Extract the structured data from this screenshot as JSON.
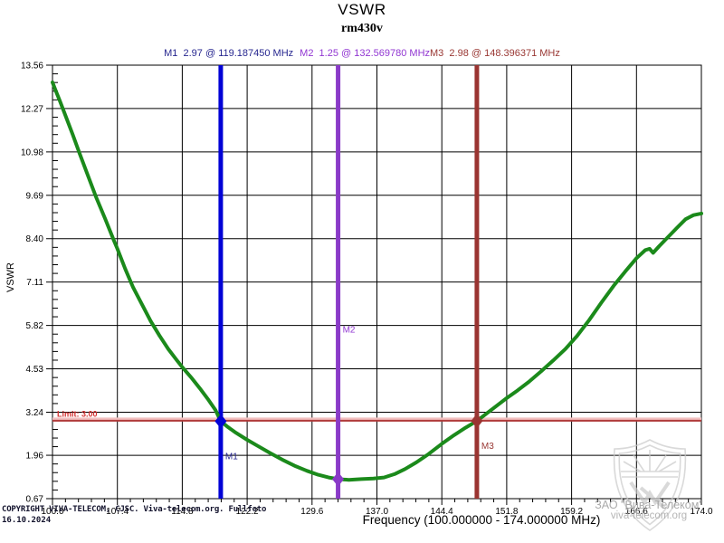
{
  "header": {
    "title": "VSWR",
    "subtitle": "rm430v"
  },
  "markers_readout": [
    {
      "id": "M1",
      "text": "M1  2.97 @ 119.187450 MHz",
      "color": "#26268f"
    },
    {
      "id": "M2",
      "text": "M2  1.25 @ 132.569780 MHz",
      "color": "#9136d2"
    },
    {
      "id": "M3",
      "text": "M3  2.98 @ 148.396371 MHz",
      "color": "#993733"
    }
  ],
  "chart_data": {
    "type": "line",
    "title": "VSWR",
    "subtitle": "rm430v",
    "xlabel": "Frequency (100.000000 - 174.000000 MHz)",
    "ylabel": "VSWR",
    "xlim": [
      100.0,
      174.0
    ],
    "ylim": [
      0.67,
      13.56
    ],
    "x_tick_labels": [
      "100.0",
      "107.4",
      "114.8",
      "122.2",
      "129.6",
      "137.0",
      "144.4",
      "151.8",
      "159.2",
      "166.6",
      "174.0"
    ],
    "x_ticks": [
      100.0,
      107.4,
      114.8,
      122.2,
      129.6,
      137.0,
      144.4,
      151.8,
      159.2,
      166.6,
      174.0
    ],
    "y_tick_labels": [
      "13.56",
      "12.27",
      "10.98",
      "9.69",
      "8.40",
      "7.11",
      "5.82",
      "4.53",
      "3.24",
      "1.96",
      "0.67"
    ],
    "y_ticks": [
      13.56,
      12.27,
      10.98,
      9.69,
      8.4,
      7.11,
      5.82,
      4.53,
      3.24,
      1.96,
      0.67
    ],
    "grid": true,
    "minor_divisions": 5,
    "series": [
      {
        "name": "VSWR trace",
        "color": "#1b8a1b",
        "points": [
          [
            100.0,
            13.05
          ],
          [
            100.4,
            12.78
          ],
          [
            100.8,
            12.52
          ],
          [
            101.5,
            12.05
          ],
          [
            102.3,
            11.5
          ],
          [
            103.1,
            10.93
          ],
          [
            104.0,
            10.3
          ],
          [
            105.0,
            9.62
          ],
          [
            106.0,
            9.0
          ],
          [
            107.0,
            8.35
          ],
          [
            107.4,
            8.1
          ],
          [
            108.3,
            7.5
          ],
          [
            109.2,
            6.95
          ],
          [
            110.2,
            6.45
          ],
          [
            111.2,
            5.95
          ],
          [
            112.2,
            5.52
          ],
          [
            113.2,
            5.12
          ],
          [
            114.2,
            4.78
          ],
          [
            114.8,
            4.58
          ],
          [
            115.8,
            4.28
          ],
          [
            116.8,
            3.95
          ],
          [
            117.8,
            3.6
          ],
          [
            118.6,
            3.3
          ],
          [
            119.187,
            2.97
          ],
          [
            119.9,
            2.82
          ],
          [
            120.8,
            2.65
          ],
          [
            122.2,
            2.42
          ],
          [
            123.4,
            2.24
          ],
          [
            124.8,
            2.03
          ],
          [
            126.2,
            1.83
          ],
          [
            127.6,
            1.65
          ],
          [
            129.0,
            1.5
          ],
          [
            130.3,
            1.38
          ],
          [
            131.5,
            1.3
          ],
          [
            132.57,
            1.25
          ],
          [
            133.8,
            1.23
          ],
          [
            135.2,
            1.25
          ],
          [
            136.6,
            1.27
          ],
          [
            137.8,
            1.3
          ],
          [
            139.0,
            1.4
          ],
          [
            140.2,
            1.55
          ],
          [
            141.5,
            1.75
          ],
          [
            142.9,
            2.0
          ],
          [
            144.4,
            2.3
          ],
          [
            145.8,
            2.56
          ],
          [
            147.1,
            2.78
          ],
          [
            148.396,
            2.98
          ],
          [
            149.6,
            3.22
          ],
          [
            150.8,
            3.46
          ],
          [
            151.8,
            3.66
          ],
          [
            153.0,
            3.88
          ],
          [
            154.3,
            4.14
          ],
          [
            155.7,
            4.45
          ],
          [
            157.1,
            4.78
          ],
          [
            158.5,
            5.12
          ],
          [
            159.8,
            5.5
          ],
          [
            161.2,
            5.98
          ],
          [
            162.6,
            6.5
          ],
          [
            164.0,
            7.0
          ],
          [
            165.3,
            7.42
          ],
          [
            166.6,
            7.82
          ],
          [
            167.6,
            8.06
          ],
          [
            168.1,
            8.1
          ],
          [
            168.5,
            7.98
          ],
          [
            169.2,
            8.18
          ],
          [
            170.2,
            8.45
          ],
          [
            171.2,
            8.72
          ],
          [
            172.2,
            8.98
          ],
          [
            173.1,
            9.1
          ],
          [
            174.0,
            9.15
          ]
        ]
      }
    ],
    "limit": {
      "label": "Limit: 3.00",
      "value": 3.0,
      "line_color": "#b03a3a",
      "halo_color": "#f2c0c0",
      "label_color": "#d43030"
    },
    "markers": [
      {
        "id": "M1",
        "freq": 119.18745,
        "vswr": 2.97,
        "line_color": "#0202d6",
        "label_color": "#26268f",
        "label_dy": 42
      },
      {
        "id": "M2",
        "freq": 132.56978,
        "vswr": 1.25,
        "line_color": "#8a3ac8",
        "label_color": "#9136d2",
        "label_dy": -162
      },
      {
        "id": "M3",
        "freq": 148.396371,
        "vswr": 2.98,
        "line_color": "#9a3431",
        "label_color": "#993733",
        "label_dy": 31
      }
    ],
    "legend": "none"
  },
  "footer": {
    "copyright": "COPYRIGHT VIVA-TELECOM, CJSC. Viva-telecom.org. Fullfoto",
    "date": "16.10.2024"
  },
  "watermark": {
    "line1": "ЗАО \"Вива-Телеком\"",
    "line2": "viva-telecom.org"
  }
}
